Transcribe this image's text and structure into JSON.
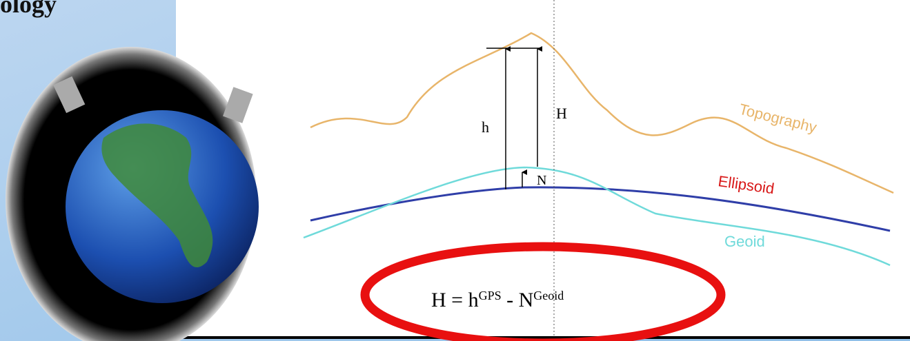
{
  "title": "ology",
  "labels": {
    "h": "h",
    "H": "H",
    "N": "N",
    "topography": "Topography",
    "ellipsoid": "Ellipsoid",
    "geoid": "Geoid"
  },
  "formula": {
    "lhs": "H = h",
    "h_sup": "GPS",
    "minus": " - N",
    "n_sup": "Geoid"
  }
}
